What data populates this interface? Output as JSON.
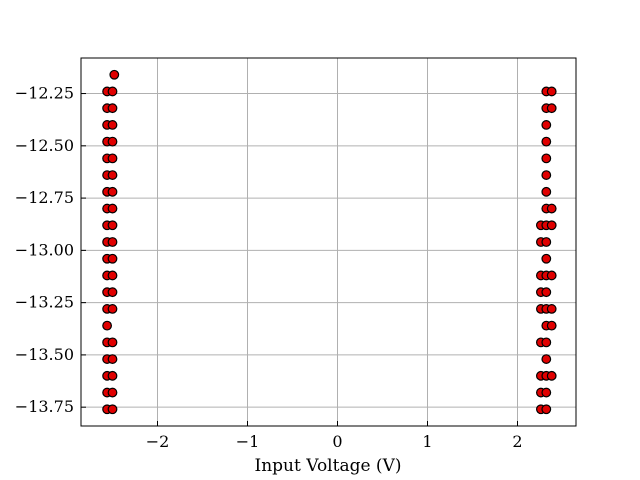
{
  "chart_data": {
    "type": "scatter",
    "title": "",
    "xlabel": "Input Voltage (V)",
    "ylabel": "",
    "xlim": [
      -2.85,
      2.65
    ],
    "ylim": [
      -13.84,
      -12.08
    ],
    "xticks": [
      -2,
      -1,
      0,
      1,
      2
    ],
    "xtick_labels": [
      "−2",
      "−1",
      "0",
      "1",
      "2"
    ],
    "yticks": [
      -12.25,
      -12.5,
      -12.75,
      -13.0,
      -13.25,
      -13.5,
      -13.75
    ],
    "ytick_labels": [
      "−12.25",
      "−12.50",
      "−12.75",
      "−13.00",
      "−13.25",
      "−13.50",
      "−13.75"
    ],
    "grid": true,
    "marker_color": "#e00000",
    "marker_edge": "#000000",
    "series": [
      {
        "points": [
          [
            -2.48,
            -12.16
          ],
          [
            -2.56,
            -12.24
          ],
          [
            -2.5,
            -12.24
          ],
          [
            -2.56,
            -12.32
          ],
          [
            -2.5,
            -12.32
          ],
          [
            -2.56,
            -12.4
          ],
          [
            -2.5,
            -12.4
          ],
          [
            -2.56,
            -12.48
          ],
          [
            -2.5,
            -12.48
          ],
          [
            -2.56,
            -12.56
          ],
          [
            -2.5,
            -12.56
          ],
          [
            -2.56,
            -12.64
          ],
          [
            -2.5,
            -12.64
          ],
          [
            -2.56,
            -12.72
          ],
          [
            -2.5,
            -12.72
          ],
          [
            -2.56,
            -12.8
          ],
          [
            -2.5,
            -12.8
          ],
          [
            -2.56,
            -12.88
          ],
          [
            -2.5,
            -12.88
          ],
          [
            -2.56,
            -12.96
          ],
          [
            -2.5,
            -12.96
          ],
          [
            -2.56,
            -13.04
          ],
          [
            -2.5,
            -13.04
          ],
          [
            -2.56,
            -13.12
          ],
          [
            -2.5,
            -13.12
          ],
          [
            -2.56,
            -13.2
          ],
          [
            -2.5,
            -13.2
          ],
          [
            -2.56,
            -13.28
          ],
          [
            -2.5,
            -13.28
          ],
          [
            -2.56,
            -13.36
          ],
          [
            -2.56,
            -13.44
          ],
          [
            -2.5,
            -13.44
          ],
          [
            -2.56,
            -13.52
          ],
          [
            -2.5,
            -13.52
          ],
          [
            -2.56,
            -13.6
          ],
          [
            -2.5,
            -13.6
          ],
          [
            -2.56,
            -13.68
          ],
          [
            -2.5,
            -13.68
          ],
          [
            -2.56,
            -13.76
          ],
          [
            -2.5,
            -13.76
          ],
          [
            2.32,
            -12.24
          ],
          [
            2.38,
            -12.24
          ],
          [
            2.32,
            -12.32
          ],
          [
            2.38,
            -12.32
          ],
          [
            2.32,
            -12.4
          ],
          [
            2.32,
            -12.48
          ],
          [
            2.32,
            -12.56
          ],
          [
            2.32,
            -12.64
          ],
          [
            2.32,
            -12.72
          ],
          [
            2.32,
            -12.8
          ],
          [
            2.38,
            -12.8
          ],
          [
            2.26,
            -12.88
          ],
          [
            2.32,
            -12.88
          ],
          [
            2.38,
            -12.88
          ],
          [
            2.26,
            -12.96
          ],
          [
            2.32,
            -12.96
          ],
          [
            2.32,
            -13.04
          ],
          [
            2.26,
            -13.12
          ],
          [
            2.32,
            -13.12
          ],
          [
            2.38,
            -13.12
          ],
          [
            2.26,
            -13.2
          ],
          [
            2.32,
            -13.2
          ],
          [
            2.26,
            -13.28
          ],
          [
            2.32,
            -13.28
          ],
          [
            2.38,
            -13.28
          ],
          [
            2.32,
            -13.36
          ],
          [
            2.38,
            -13.36
          ],
          [
            2.26,
            -13.44
          ],
          [
            2.32,
            -13.44
          ],
          [
            2.32,
            -13.52
          ],
          [
            2.26,
            -13.6
          ],
          [
            2.32,
            -13.6
          ],
          [
            2.38,
            -13.6
          ],
          [
            2.26,
            -13.68
          ],
          [
            2.32,
            -13.68
          ],
          [
            2.26,
            -13.76
          ],
          [
            2.32,
            -13.76
          ]
        ]
      }
    ]
  }
}
